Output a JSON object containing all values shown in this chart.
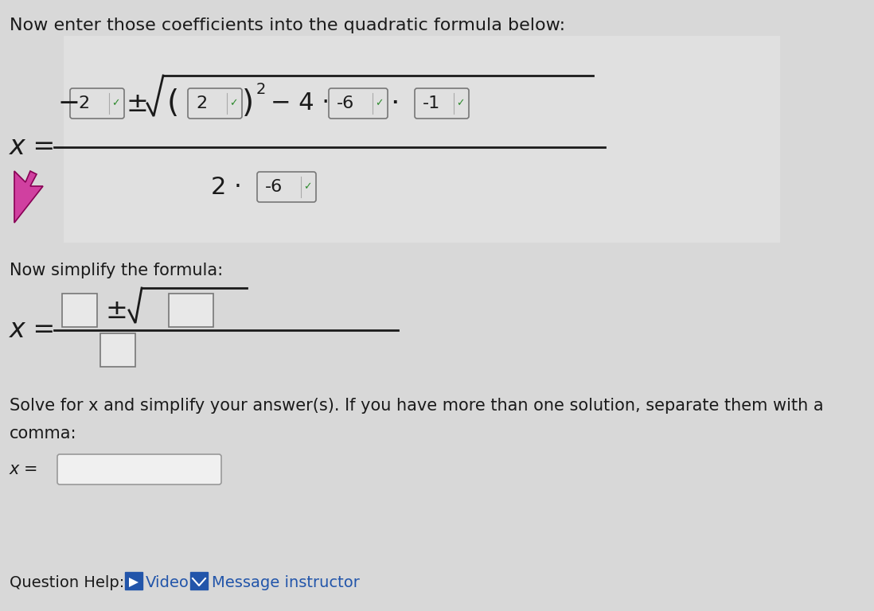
{
  "bg_color": "#c8c8c8",
  "white_area_color": "#e8e8e8",
  "title_text": "Now enter those coefficients into the quadratic formula below:",
  "simplify_text": "Now simplify the formula:",
  "solve_text": "Solve for x and simplify your answer(s). If you have more than one solution, separate them with a",
  "comma_text": "comma:",
  "question_help_text": "Question Help:",
  "video_text": "Video",
  "message_text": "Message instructor",
  "formula_color": "#1a1a1a",
  "box_bg": "#e8e8e8",
  "box_border": "#888888",
  "green_check": "#2d8a2d",
  "help_color": "#2255aa",
  "cursor_color": "#d040a0",
  "title_fontsize": 16,
  "body_fontsize": 15,
  "formula_fontsize": 20
}
